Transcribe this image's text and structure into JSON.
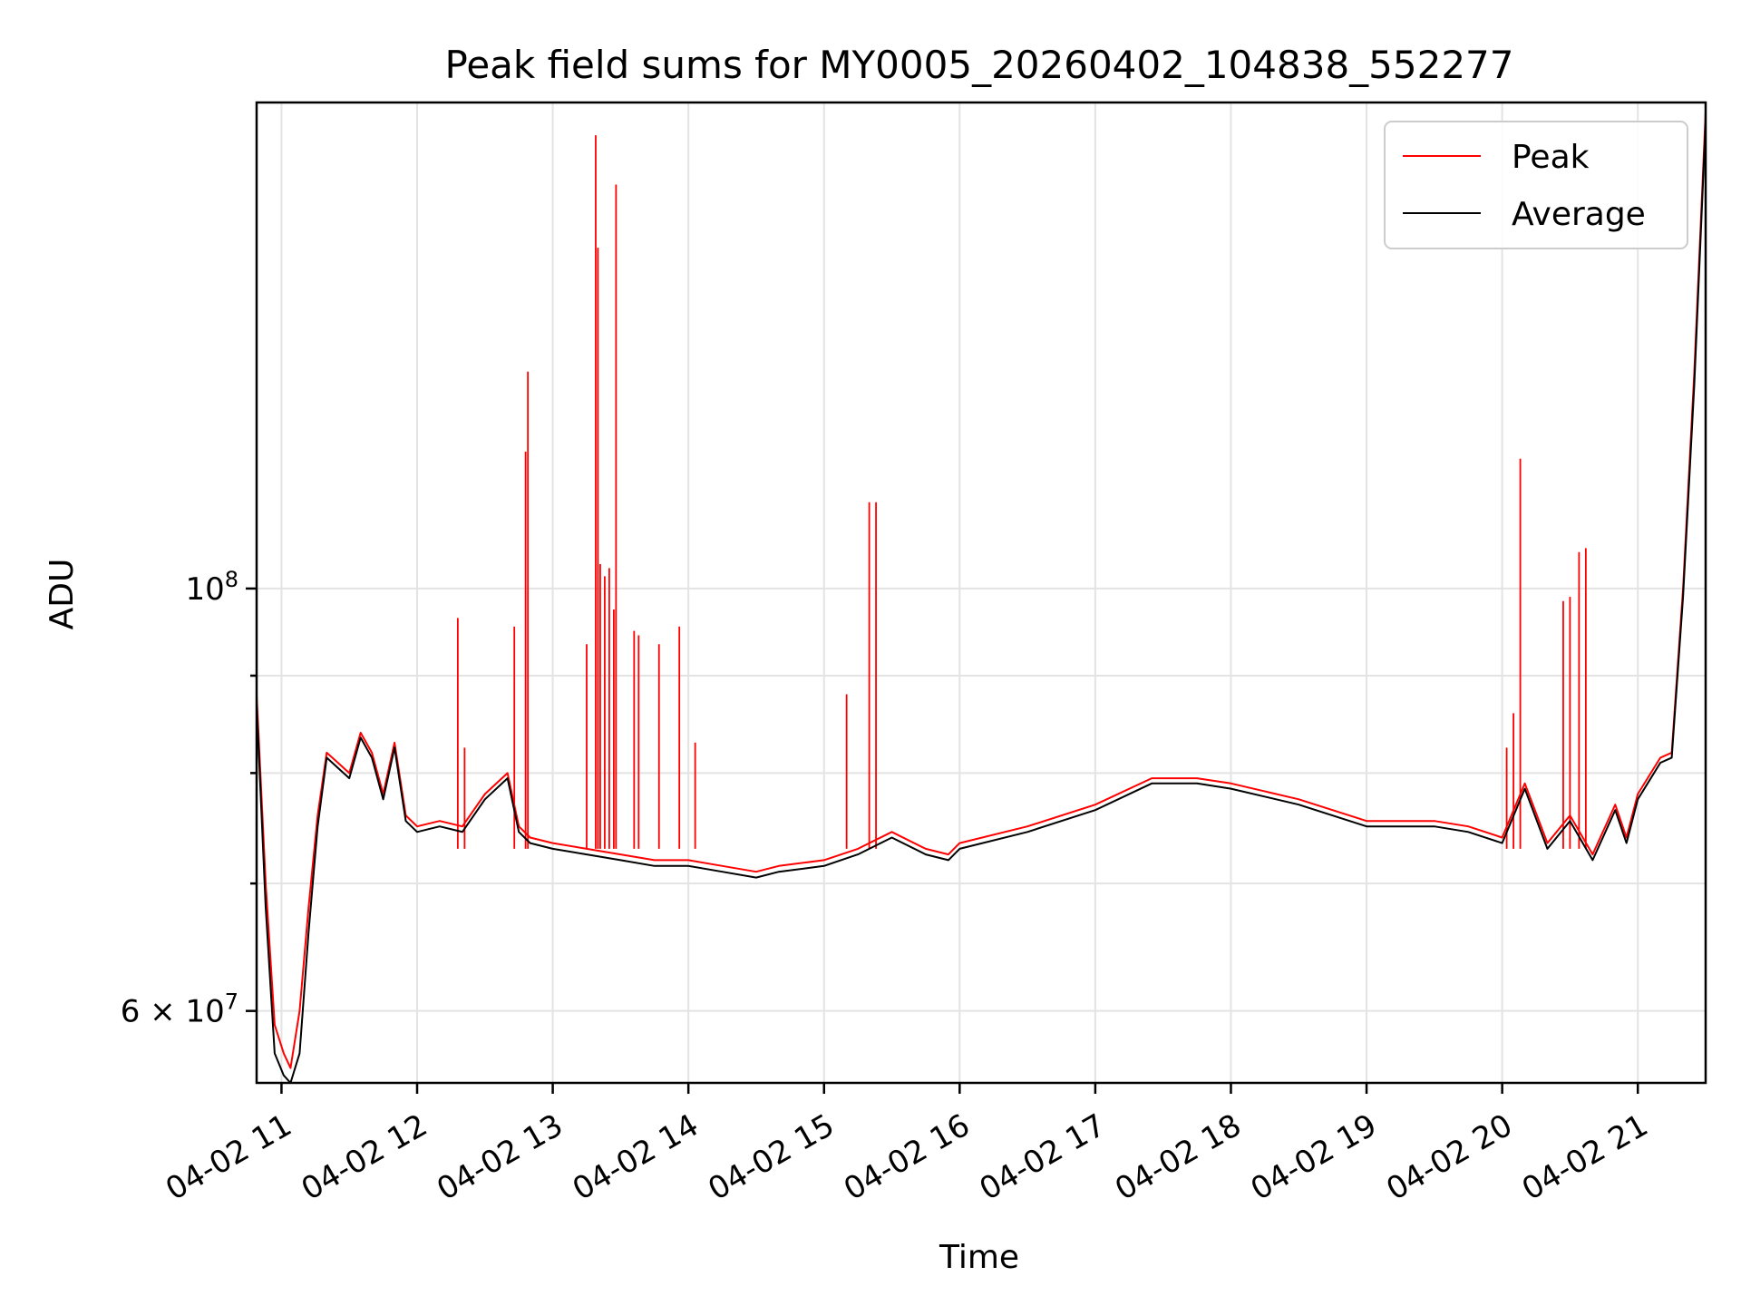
{
  "chart_data": {
    "type": "line",
    "title": "Peak field sums for MY0005_20260402_104838_552277",
    "xlabel": "Time",
    "ylabel": "ADU",
    "y_scale": "log",
    "ylim": [
      55000000,
      180000000
    ],
    "xlim": [
      "2026-04-02 10:49",
      "2026-04-02 21:30"
    ],
    "x_ticks": [
      {
        "value": "2026-04-02 11:00",
        "label": "04-02 11"
      },
      {
        "value": "2026-04-02 12:00",
        "label": "04-02 12"
      },
      {
        "value": "2026-04-02 13:00",
        "label": "04-02 13"
      },
      {
        "value": "2026-04-02 14:00",
        "label": "04-02 14"
      },
      {
        "value": "2026-04-02 15:00",
        "label": "04-02 15"
      },
      {
        "value": "2026-04-02 16:00",
        "label": "04-02 16"
      },
      {
        "value": "2026-04-02 17:00",
        "label": "04-02 17"
      },
      {
        "value": "2026-04-02 18:00",
        "label": "04-02 18"
      },
      {
        "value": "2026-04-02 19:00",
        "label": "04-02 19"
      },
      {
        "value": "2026-04-02 20:00",
        "label": "04-02 20"
      },
      {
        "value": "2026-04-02 21:00",
        "label": "04-02 21"
      }
    ],
    "y_ticks": [
      {
        "value": 60000000,
        "base": "6 × 10",
        "exp": "7"
      },
      {
        "value": 100000000,
        "base": "10",
        "exp": "8"
      }
    ],
    "y_minor_ticks": [
      70000000,
      80000000,
      90000000
    ],
    "grid": true,
    "legend_position": "top-right",
    "series": [
      {
        "name": "Peak",
        "color": "#ff0000",
        "x": [
          "2026-04-02 10:49",
          "2026-04-02 10:53",
          "2026-04-02 10:57",
          "2026-04-02 11:01",
          "2026-04-02 11:04",
          "2026-04-02 11:08",
          "2026-04-02 11:12",
          "2026-04-02 11:16",
          "2026-04-02 11:20",
          "2026-04-02 11:25",
          "2026-04-02 11:30",
          "2026-04-02 11:35",
          "2026-04-02 11:40",
          "2026-04-02 11:45",
          "2026-04-02 11:50",
          "2026-04-02 11:55",
          "2026-04-02 12:00",
          "2026-04-02 12:10",
          "2026-04-02 12:20",
          "2026-04-02 12:30",
          "2026-04-02 12:40",
          "2026-04-02 12:45",
          "2026-04-02 12:50",
          "2026-04-02 13:00",
          "2026-04-02 13:15",
          "2026-04-02 13:30",
          "2026-04-02 13:45",
          "2026-04-02 14:00",
          "2026-04-02 14:15",
          "2026-04-02 14:30",
          "2026-04-02 14:40",
          "2026-04-02 15:00",
          "2026-04-02 15:15",
          "2026-04-02 15:30",
          "2026-04-02 15:45",
          "2026-04-02 15:55",
          "2026-04-02 16:00",
          "2026-04-02 16:30",
          "2026-04-02 17:00",
          "2026-04-02 17:25",
          "2026-04-02 17:45",
          "2026-04-02 18:00",
          "2026-04-02 18:30",
          "2026-04-02 19:00",
          "2026-04-02 19:30",
          "2026-04-02 19:45",
          "2026-04-02 20:00",
          "2026-04-02 20:10",
          "2026-04-02 20:20",
          "2026-04-02 20:30",
          "2026-04-02 20:40",
          "2026-04-02 20:50",
          "2026-04-02 20:55",
          "2026-04-02 21:00",
          "2026-04-02 21:10",
          "2026-04-02 21:15",
          "2026-04-02 21:20",
          "2026-04-02 21:25",
          "2026-04-02 21:30"
        ],
        "values": [
          88000000,
          70000000,
          59000000,
          57000000,
          56000000,
          60000000,
          68000000,
          76000000,
          82000000,
          81000000,
          80000000,
          84000000,
          82000000,
          78000000,
          83000000,
          76000000,
          75000000,
          75500000,
          75000000,
          78000000,
          80000000,
          75000000,
          74000000,
          73500000,
          73000000,
          72500000,
          72000000,
          72000000,
          71500000,
          71000000,
          71500000,
          72000000,
          73000000,
          74500000,
          73000000,
          72500000,
          73500000,
          75000000,
          77000000,
          79500000,
          79500000,
          79000000,
          77500000,
          75500000,
          75500000,
          75000000,
          74000000,
          79000000,
          73500000,
          76000000,
          72500000,
          77000000,
          74000000,
          78000000,
          81500000,
          82000000,
          100000000,
          130000000,
          178000000
        ],
        "spikes": [
          {
            "x": "2026-04-02 12:18",
            "value": 96500000
          },
          {
            "x": "2026-04-02 12:21",
            "value": 82500000
          },
          {
            "x": "2026-04-02 12:43",
            "value": 95500000
          },
          {
            "x": "2026-04-02 12:48",
            "value": 118000000
          },
          {
            "x": "2026-04-02 12:49",
            "value": 130000000
          },
          {
            "x": "2026-04-02 13:15",
            "value": 93500000
          },
          {
            "x": "2026-04-02 13:19",
            "value": 173000000
          },
          {
            "x": "2026-04-02 13:20",
            "value": 151000000
          },
          {
            "x": "2026-04-02 13:21",
            "value": 103000000
          },
          {
            "x": "2026-04-02 13:23",
            "value": 101500000
          },
          {
            "x": "2026-04-02 13:25",
            "value": 102500000
          },
          {
            "x": "2026-04-02 13:27",
            "value": 97500000
          },
          {
            "x": "2026-04-02 13:28",
            "value": 163000000
          },
          {
            "x": "2026-04-02 13:36",
            "value": 95000000
          },
          {
            "x": "2026-04-02 13:38",
            "value": 94500000
          },
          {
            "x": "2026-04-02 13:47",
            "value": 93500000
          },
          {
            "x": "2026-04-02 13:56",
            "value": 95500000
          },
          {
            "x": "2026-04-02 14:03",
            "value": 83000000
          },
          {
            "x": "2026-04-02 15:10",
            "value": 88000000
          },
          {
            "x": "2026-04-02 15:20",
            "value": 111000000
          },
          {
            "x": "2026-04-02 15:23",
            "value": 111000000
          },
          {
            "x": "2026-04-02 20:02",
            "value": 82500000
          },
          {
            "x": "2026-04-02 20:05",
            "value": 86000000
          },
          {
            "x": "2026-04-02 20:08",
            "value": 117000000
          },
          {
            "x": "2026-04-02 20:27",
            "value": 98500000
          },
          {
            "x": "2026-04-02 20:30",
            "value": 99000000
          },
          {
            "x": "2026-04-02 20:34",
            "value": 104500000
          },
          {
            "x": "2026-04-02 20:37",
            "value": 105000000
          }
        ]
      },
      {
        "name": "Average",
        "color": "#000000",
        "x": [
          "2026-04-02 10:49",
          "2026-04-02 10:53",
          "2026-04-02 10:57",
          "2026-04-02 11:01",
          "2026-04-02 11:04",
          "2026-04-02 11:08",
          "2026-04-02 11:12",
          "2026-04-02 11:16",
          "2026-04-02 11:20",
          "2026-04-02 11:25",
          "2026-04-02 11:30",
          "2026-04-02 11:35",
          "2026-04-02 11:40",
          "2026-04-02 11:45",
          "2026-04-02 11:50",
          "2026-04-02 11:55",
          "2026-04-02 12:00",
          "2026-04-02 12:10",
          "2026-04-02 12:20",
          "2026-04-02 12:30",
          "2026-04-02 12:40",
          "2026-04-02 12:45",
          "2026-04-02 12:50",
          "2026-04-02 13:00",
          "2026-04-02 13:15",
          "2026-04-02 13:30",
          "2026-04-02 13:45",
          "2026-04-02 14:00",
          "2026-04-02 14:15",
          "2026-04-02 14:30",
          "2026-04-02 14:40",
          "2026-04-02 15:00",
          "2026-04-02 15:15",
          "2026-04-02 15:30",
          "2026-04-02 15:45",
          "2026-04-02 15:55",
          "2026-04-02 16:00",
          "2026-04-02 16:30",
          "2026-04-02 17:00",
          "2026-04-02 17:25",
          "2026-04-02 17:45",
          "2026-04-02 18:00",
          "2026-04-02 18:30",
          "2026-04-02 19:00",
          "2026-04-02 19:30",
          "2026-04-02 19:45",
          "2026-04-02 20:00",
          "2026-04-02 20:10",
          "2026-04-02 20:20",
          "2026-04-02 20:30",
          "2026-04-02 20:40",
          "2026-04-02 20:50",
          "2026-04-02 20:55",
          "2026-04-02 21:00",
          "2026-04-02 21:10",
          "2026-04-02 21:15",
          "2026-04-02 21:20",
          "2026-04-02 21:25",
          "2026-04-02 21:30"
        ],
        "values": [
          87000000,
          68000000,
          57000000,
          55500000,
          55000000,
          57000000,
          66000000,
          75000000,
          81500000,
          80500000,
          79500000,
          83500000,
          81500000,
          77500000,
          82500000,
          75500000,
          74500000,
          75000000,
          74500000,
          77500000,
          79500000,
          74500000,
          73500000,
          73000000,
          72500000,
          72000000,
          71500000,
          71500000,
          71000000,
          70500000,
          71000000,
          71500000,
          72500000,
          74000000,
          72500000,
          72000000,
          73000000,
          74500000,
          76500000,
          79000000,
          79000000,
          78500000,
          77000000,
          75000000,
          75000000,
          74500000,
          73500000,
          78500000,
          73000000,
          75500000,
          72000000,
          76500000,
          73500000,
          77500000,
          81000000,
          81500000,
          99000000,
          128000000,
          176000000
        ]
      }
    ]
  }
}
